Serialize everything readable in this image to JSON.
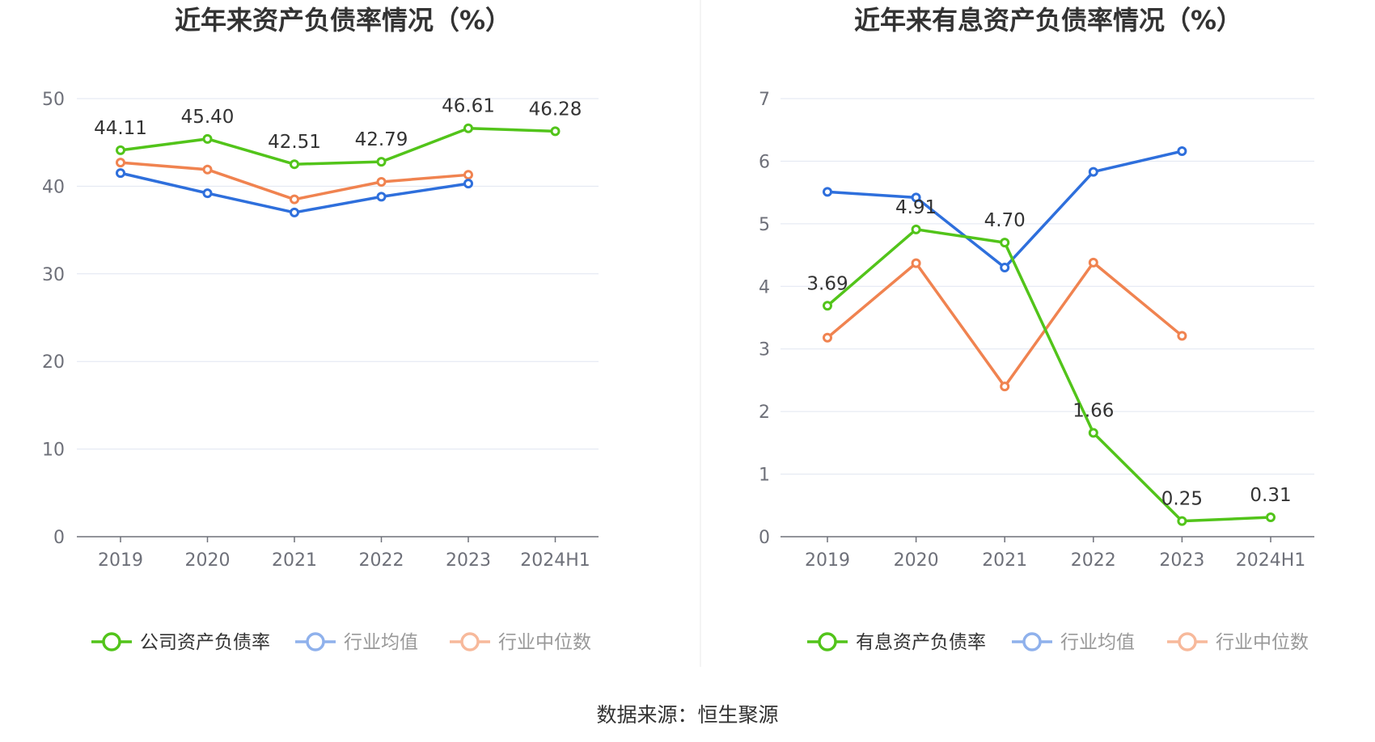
{
  "source_text": "数据来源：恒生聚源",
  "chart_data": [
    {
      "type": "line",
      "title": "近年来资产负债率情况（%）",
      "categories": [
        "2019",
        "2020",
        "2021",
        "2022",
        "2023",
        "2024H1"
      ],
      "ylim": [
        0,
        50
      ],
      "yticks": [
        0,
        10,
        20,
        30,
        40,
        50
      ],
      "grid": true,
      "legend_position": "bottom",
      "series": [
        {
          "name": "公司资产负债率",
          "color": "#52c41a",
          "legend_text_color": "#333333",
          "labels": true,
          "values": [
            44.11,
            45.4,
            42.51,
            42.79,
            46.61,
            46.28
          ],
          "label_text": [
            "44.11",
            "45.40",
            "42.51",
            "42.79",
            "46.61",
            "46.28"
          ]
        },
        {
          "name": "行业均值",
          "color": "#2e6fdc",
          "legend_text_color": "#999999",
          "labels": false,
          "values": [
            41.5,
            39.2,
            37.0,
            38.8,
            40.3,
            null
          ]
        },
        {
          "name": "行业中位数",
          "color": "#f08350",
          "legend_text_color": "#999999",
          "labels": false,
          "values": [
            42.7,
            41.9,
            38.5,
            40.5,
            41.3,
            null
          ]
        }
      ]
    },
    {
      "type": "line",
      "title": "近年来有息资产负债率情况（%）",
      "categories": [
        "2019",
        "2020",
        "2021",
        "2022",
        "2023",
        "2024H1"
      ],
      "ylim": [
        0,
        7
      ],
      "yticks": [
        0,
        1,
        2,
        3,
        4,
        5,
        6,
        7
      ],
      "grid": true,
      "legend_position": "bottom",
      "series": [
        {
          "name": "有息资产负债率",
          "color": "#52c41a",
          "legend_text_color": "#333333",
          "labels": true,
          "values": [
            3.69,
            4.91,
            4.7,
            1.66,
            0.25,
            0.31
          ],
          "label_text": [
            "3.69",
            "4.91",
            "4.70",
            "1.66",
            "0.25",
            "0.31"
          ]
        },
        {
          "name": "行业均值",
          "color": "#2e6fdc",
          "legend_text_color": "#999999",
          "labels": false,
          "values": [
            5.51,
            5.42,
            4.3,
            5.83,
            6.16,
            null
          ]
        },
        {
          "name": "行业中位数",
          "color": "#f08350",
          "legend_text_color": "#999999",
          "labels": false,
          "values": [
            3.18,
            4.37,
            2.4,
            4.38,
            3.21,
            null
          ]
        }
      ]
    }
  ]
}
